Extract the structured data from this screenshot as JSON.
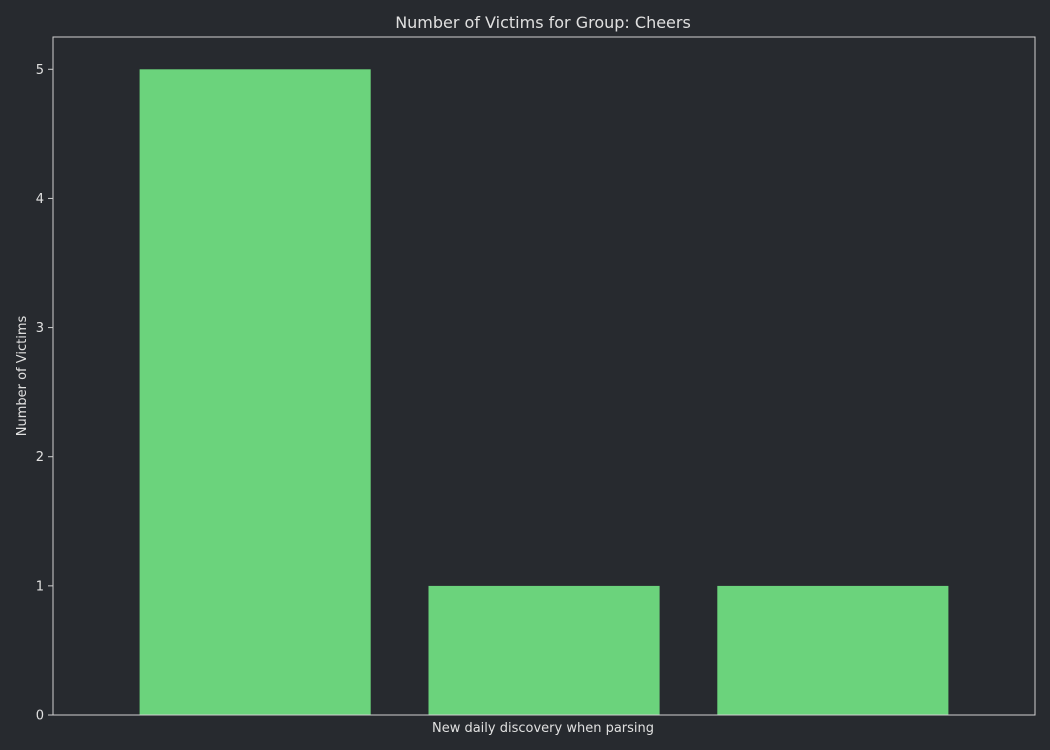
{
  "chart_data": {
    "type": "bar",
    "title": "Number of Victims for Group: Cheers",
    "xlabel": "New daily discovery when parsing",
    "ylabel": "Number of Victims",
    "categories": [
      "",
      "",
      ""
    ],
    "values": [
      5,
      1,
      1
    ],
    "ylim": [
      0,
      5.25
    ],
    "yticks": [
      0,
      1,
      2,
      3,
      4,
      5
    ],
    "grid": false,
    "legend": "none"
  },
  "colors": {
    "background": "#272a2f",
    "bar": "#6bd37c",
    "axes_frame": "#d0d0d0",
    "text": "#e0e0e0"
  }
}
